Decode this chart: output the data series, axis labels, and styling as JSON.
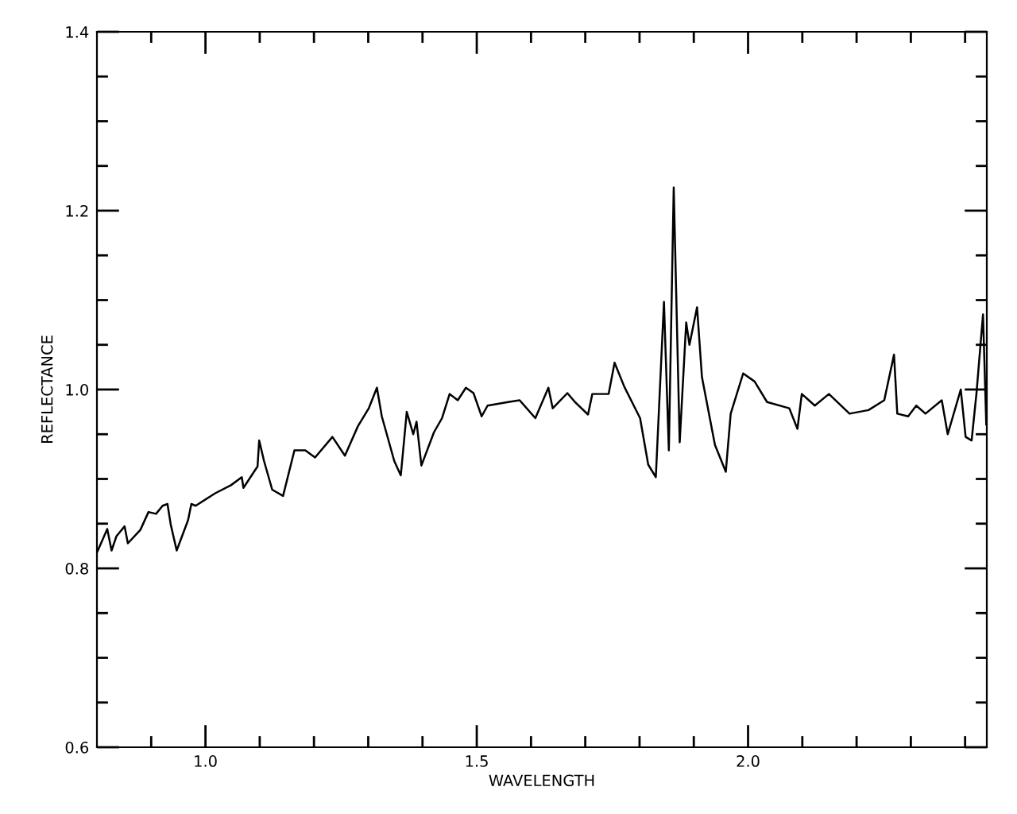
{
  "chart_data": {
    "type": "line",
    "xlabel": "WAVELENGTH",
    "ylabel": "REFLECTANCE",
    "xlim": [
      0.8,
      2.44
    ],
    "ylim": [
      0.6,
      1.4
    ],
    "xticks": [
      {
        "value": 0.9,
        "label": null
      },
      {
        "value": 1.0,
        "label": "1.0"
      },
      {
        "value": 1.1,
        "label": null
      },
      {
        "value": 1.2,
        "label": null
      },
      {
        "value": 1.3,
        "label": null
      },
      {
        "value": 1.4,
        "label": null
      },
      1.5,
      {
        "value": 1.6,
        "label": null
      },
      {
        "value": 1.7,
        "label": null
      },
      {
        "value": 1.8,
        "label": null
      },
      {
        "value": 1.9,
        "label": null
      },
      {
        "value": 2.0,
        "label": "2.0"
      },
      {
        "value": 2.1,
        "label": null
      },
      {
        "value": 2.2,
        "label": null
      },
      {
        "value": 2.3,
        "label": null
      },
      {
        "value": 2.4,
        "label": null
      }
    ],
    "yticks": [
      0.6,
      {
        "value": 0.65,
        "label": null
      },
      {
        "value": 0.7,
        "label": null
      },
      {
        "value": 0.75,
        "label": null
      },
      0.8,
      {
        "value": 0.85,
        "label": null
      },
      {
        "value": 0.9,
        "label": null
      },
      {
        "value": 0.95,
        "label": null
      },
      {
        "value": 1.0,
        "label": "1.0"
      },
      {
        "value": 1.05,
        "label": null
      },
      {
        "value": 1.1,
        "label": null
      },
      {
        "value": 1.15,
        "label": null
      },
      1.2,
      {
        "value": 1.25,
        "label": null
      },
      {
        "value": 1.3,
        "label": null
      },
      {
        "value": 1.35,
        "label": null
      },
      1.4
    ],
    "grid": false,
    "legend": false,
    "marker": "none",
    "line_style": "solid",
    "series": [
      {
        "color": "#000000",
        "x": [
          0.801,
          0.819,
          0.827,
          0.836,
          0.851,
          0.857,
          0.88,
          0.895,
          0.909,
          0.921,
          0.93,
          0.936,
          0.947,
          0.968,
          0.974,
          0.982,
          1.018,
          1.047,
          1.067,
          1.07,
          1.096,
          1.099,
          1.108,
          1.123,
          1.143,
          1.164,
          1.184,
          1.202,
          1.234,
          1.257,
          1.281,
          1.301,
          1.316,
          1.325,
          1.348,
          1.36,
          1.371,
          1.383,
          1.389,
          1.398,
          1.421,
          1.436,
          1.45,
          1.465,
          1.48,
          1.494,
          1.509,
          1.52,
          1.558,
          1.579,
          1.608,
          1.632,
          1.64,
          1.667,
          1.681,
          1.705,
          1.713,
          1.743,
          1.754,
          1.772,
          1.801,
          1.816,
          1.83,
          1.845,
          1.854,
          1.863,
          1.874,
          1.886,
          1.892,
          1.906,
          1.915,
          1.939,
          1.959,
          1.968,
          1.991,
          2.012,
          2.035,
          2.076,
          2.091,
          2.099,
          2.123,
          2.149,
          2.187,
          2.222,
          2.251,
          2.269,
          2.275,
          2.295,
          2.31,
          2.327,
          2.357,
          2.368,
          2.392,
          2.401,
          2.412,
          2.421,
          2.433,
          2.439
        ],
        "values": [
          0.819,
          0.844,
          0.82,
          0.836,
          0.847,
          0.828,
          0.843,
          0.863,
          0.861,
          0.87,
          0.872,
          0.849,
          0.82,
          0.854,
          0.872,
          0.87,
          0.884,
          0.893,
          0.902,
          0.89,
          0.914,
          0.943,
          0.92,
          0.888,
          0.881,
          0.932,
          0.932,
          0.924,
          0.947,
          0.926,
          0.959,
          0.979,
          1.002,
          0.97,
          0.92,
          0.904,
          0.975,
          0.95,
          0.964,
          0.915,
          0.952,
          0.968,
          0.995,
          0.988,
          1.002,
          0.996,
          0.97,
          0.982,
          0.986,
          0.988,
          0.968,
          1.002,
          0.979,
          0.996,
          0.986,
          0.972,
          0.995,
          0.995,
          1.03,
          1.003,
          0.968,
          0.916,
          0.902,
          1.098,
          0.932,
          1.226,
          0.941,
          1.075,
          1.05,
          1.092,
          1.014,
          0.938,
          0.908,
          0.973,
          1.018,
          1.009,
          0.986,
          0.979,
          0.956,
          0.995,
          0.982,
          0.995,
          0.973,
          0.977,
          0.988,
          1.039,
          0.973,
          0.97,
          0.982,
          0.973,
          0.988,
          0.95,
          1.0,
          0.947,
          0.943,
          0.996,
          1.084,
          0.961
        ]
      }
    ]
  }
}
